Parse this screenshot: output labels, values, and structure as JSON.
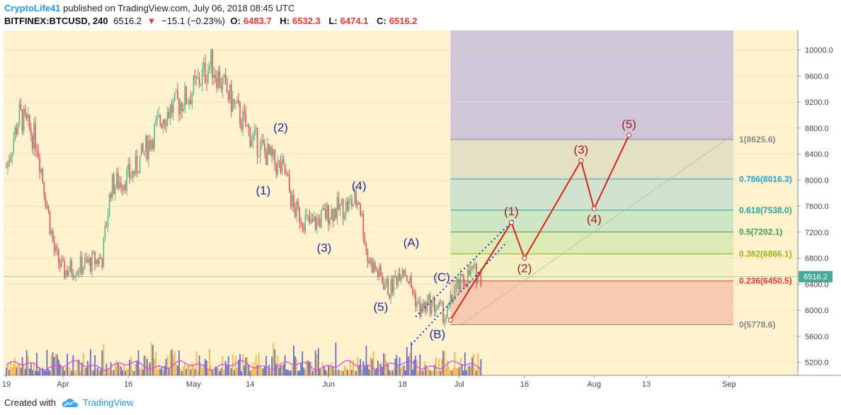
{
  "header": {
    "author": "CryptoLife41",
    "published_text": "published on TradingView.com, July 06, 2018 08:45 UTC",
    "symbol": "BITFINEX:BTCUSD, 240",
    "last": "6516.2",
    "change": "−15.1 (−0.23%)",
    "o_label": "O:",
    "o": "6483.7",
    "h_label": "H:",
    "h": "6532.3",
    "l_label": "L:",
    "l": "6474.1",
    "c_label": "C:",
    "c": "6516.2",
    "down_color": "#e53935",
    "author_color": "#2196f3"
  },
  "footer": {
    "created_with": "Created with",
    "brand": "TradingView",
    "logo_icon": "tradingview-cloud-icon"
  },
  "chart_data": {
    "type": "candlestick",
    "symbol": "BITFINEX:BTCUSD",
    "interval": "240",
    "ylim": [
      5000,
      10300
    ],
    "y_ticks": [
      "10000.0",
      "9600.0",
      "9200.0",
      "8800.0",
      "8400.0",
      "8000.0",
      "7600.0",
      "7200.0",
      "6800.0",
      "6400.0",
      "6000.0",
      "5600.0",
      "5200.0"
    ],
    "x_ticks": [
      "19",
      "Apr",
      "16",
      "May",
      "14",
      "Jun",
      "18",
      "Jul",
      "16",
      "Aug",
      "13",
      "Sep"
    ],
    "last_price_label": "6516.2",
    "price_path_approx": [
      [
        "2018-03-19",
        8200
      ],
      [
        "2018-03-22",
        9000
      ],
      [
        "2018-03-26",
        8600
      ],
      [
        "2018-03-30",
        6900
      ],
      [
        "2018-04-01",
        6600
      ],
      [
        "2018-04-06",
        6700
      ],
      [
        "2018-04-10",
        6800
      ],
      [
        "2018-04-12",
        7900
      ],
      [
        "2018-04-17",
        8100
      ],
      [
        "2018-04-24",
        9000
      ],
      [
        "2018-04-30",
        9300
      ],
      [
        "2018-05-05",
        9800
      ],
      [
        "2018-05-09",
        9300
      ],
      [
        "2018-05-14",
        8700
      ],
      [
        "2018-05-19",
        8300
      ],
      [
        "2018-05-22",
        8100
      ],
      [
        "2018-05-24",
        7550
      ],
      [
        "2018-05-28",
        7300
      ],
      [
        "2018-06-01",
        7500
      ],
      [
        "2018-06-05",
        7600
      ],
      [
        "2018-06-08",
        7700
      ],
      [
        "2018-06-10",
        6800
      ],
      [
        "2018-06-13",
        6500
      ],
      [
        "2018-06-15",
        6300
      ],
      [
        "2018-06-18",
        6700
      ],
      [
        "2018-06-22",
        6000
      ],
      [
        "2018-06-24",
        6100
      ],
      [
        "2018-06-26",
        6050
      ],
      [
        "2018-06-28",
        5900
      ],
      [
        "2018-06-30",
        6300
      ],
      [
        "2018-07-04",
        6600
      ],
      [
        "2018-07-06",
        6516.2
      ]
    ],
    "fib_levels": [
      {
        "label": "1(8625.6)",
        "value": 8625.6,
        "color": "#888888"
      },
      {
        "label": "0.786(8016.3)",
        "value": 8016.3,
        "color": "#29a3d6"
      },
      {
        "label": "0.618(7538.0)",
        "value": 7538.0,
        "color": "#26a69a"
      },
      {
        "label": "0.5(7202.1)",
        "value": 7202.1,
        "color": "#43a047"
      },
      {
        "label": "0.382(6866.1)",
        "value": 6866.1,
        "color": "#9cb30e"
      },
      {
        "label": "0.236(6450.5)",
        "value": 6450.5,
        "color": "#e53935"
      },
      {
        "label": "0(5778.6)",
        "value": 5778.6,
        "color": "#888888"
      }
    ],
    "projection": [
      {
        "label": "(1)",
        "date": "2018-07-13",
        "price": 7350
      },
      {
        "label": "(2)",
        "date": "2018-07-16",
        "price": 6800
      },
      {
        "label": "(3)",
        "date": "2018-07-29",
        "price": 8300
      },
      {
        "label": "(4)",
        "date": "2018-08-01",
        "price": 7560
      },
      {
        "label": "(5)",
        "date": "2018-08-09",
        "price": 8690
      }
    ],
    "projection_start": {
      "date": "2018-06-29",
      "price": 5850
    },
    "wave_labels_blue": [
      {
        "label": "(2)",
        "date": "2018-05-21",
        "price": 8750
      },
      {
        "label": "(1)",
        "date": "2018-05-17",
        "price": 7780
      },
      {
        "label": "(3)",
        "date": "2018-05-31",
        "price": 6900
      },
      {
        "label": "(4)",
        "date": "2018-06-08",
        "price": 7850
      },
      {
        "label": "(5)",
        "date": "2018-06-13",
        "price": 5990
      },
      {
        "label": "(A)",
        "date": "2018-06-20",
        "price": 6980
      },
      {
        "label": "(C)",
        "date": "2018-06-27",
        "price": 6450
      },
      {
        "label": "(B)",
        "date": "2018-06-26",
        "price": 5570
      }
    ]
  }
}
